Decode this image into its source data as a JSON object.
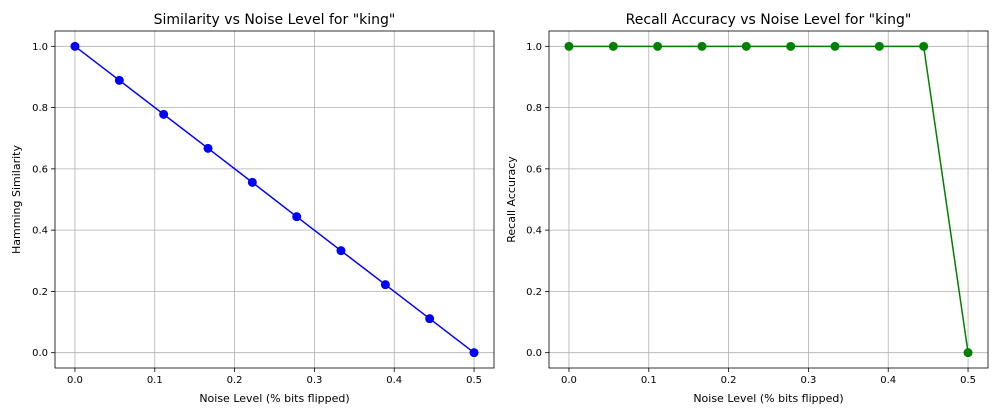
{
  "chart_data": [
    {
      "type": "line",
      "title": "Similarity vs Noise Level for \"king\"",
      "xlabel": "Noise Level (% bits flipped)",
      "ylabel": "Hamming Similarity",
      "xlim": [
        -0.025,
        0.525
      ],
      "ylim": [
        -0.05,
        1.05
      ],
      "xticks": [
        "0.0",
        "0.1",
        "0.2",
        "0.3",
        "0.4",
        "0.5"
      ],
      "yticks": [
        "0.0",
        "0.2",
        "0.4",
        "0.6",
        "0.8",
        "1.0"
      ],
      "grid": true,
      "series": [
        {
          "color": "#0000ff",
          "marker": "circle",
          "x": [
            0.0,
            0.0556,
            0.1111,
            0.1667,
            0.2222,
            0.2778,
            0.3333,
            0.3889,
            0.4444,
            0.5
          ],
          "y": [
            1.0,
            0.889,
            0.778,
            0.667,
            0.556,
            0.444,
            0.333,
            0.222,
            0.111,
            0.0
          ]
        }
      ]
    },
    {
      "type": "line",
      "title": "Recall Accuracy vs Noise Level for \"king\"",
      "xlabel": "Noise Level (% bits flipped)",
      "ylabel": "Recall Accuracy",
      "xlim": [
        -0.025,
        0.525
      ],
      "ylim": [
        -0.05,
        1.05
      ],
      "xticks": [
        "0.0",
        "0.1",
        "0.2",
        "0.3",
        "0.4",
        "0.5"
      ],
      "yticks": [
        "0.0",
        "0.2",
        "0.4",
        "0.6",
        "0.8",
        "1.0"
      ],
      "grid": true,
      "series": [
        {
          "color": "#008000",
          "marker": "circle",
          "x": [
            0.0,
            0.0556,
            0.1111,
            0.1667,
            0.2222,
            0.2778,
            0.3333,
            0.3889,
            0.4444,
            0.5
          ],
          "y": [
            1.0,
            1.0,
            1.0,
            1.0,
            1.0,
            1.0,
            1.0,
            1.0,
            1.0,
            0.0
          ]
        }
      ]
    }
  ]
}
